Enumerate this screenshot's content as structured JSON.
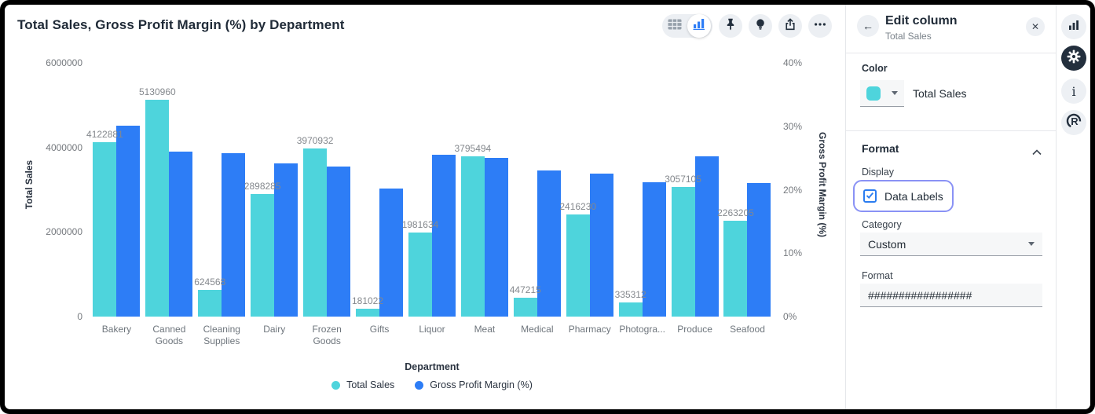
{
  "chart": {
    "title": "Total Sales, Gross Profit Margin (%) by Department",
    "toolbar_icons": [
      "table-view",
      "chart-view",
      "pin",
      "lightbulb",
      "share",
      "more"
    ]
  },
  "chart_data": {
    "type": "bar",
    "title": "Total Sales, Gross Profit Margin (%) by Department",
    "categories": [
      "Bakery",
      "Canned Goods",
      "Cleaning Supplies",
      "Dairy",
      "Frozen Goods",
      "Gifts",
      "Liquor",
      "Meat",
      "Medical",
      "Pharmacy",
      "Photogra...",
      "Produce",
      "Seafood"
    ],
    "series": [
      {
        "name": "Total Sales",
        "axis": "left",
        "color": "#4ED4DC",
        "data_labels": true,
        "values": [
          4122881,
          5130960,
          624568,
          2898285,
          3970932,
          181022,
          1981634,
          3795494,
          447215,
          2416230,
          335312,
          3057105,
          2263205
        ]
      },
      {
        "name": "Gross Profit Margin (%)",
        "axis": "right",
        "color": "#2D7DF6",
        "data_labels": false,
        "values": [
          30.1,
          26.0,
          25.7,
          24.2,
          23.6,
          20.2,
          25.5,
          25.0,
          23.0,
          22.5,
          21.2,
          25.3,
          21.1
        ]
      }
    ],
    "x_axis": {
      "label": "Department"
    },
    "y_left": {
      "label": "Total Sales",
      "max": 6000000,
      "ticks": [
        6000000,
        4000000,
        2000000,
        0
      ]
    },
    "y_right": {
      "label": "Gross Profit Margin (%)",
      "max": 40,
      "ticks": [
        40,
        30,
        20,
        10,
        0
      ],
      "suffix": "%"
    },
    "legend": {
      "position": "bottom",
      "items": [
        {
          "label": "Total Sales",
          "color": "#4ED4DC"
        },
        {
          "label": "Gross Profit Margin (%)",
          "color": "#2D7DF6"
        }
      ]
    },
    "grid": false
  },
  "panel": {
    "header": {
      "back_glyph": "←",
      "title": "Edit column",
      "subtitle": "Total Sales",
      "close_glyph": "✕"
    },
    "color_section": {
      "label": "Color",
      "swatch_color": "#4ED4DC",
      "value": "Total Sales"
    },
    "format_section": {
      "label": "Format",
      "display_label": "Display",
      "data_labels": {
        "label": "Data Labels",
        "checked": true
      },
      "category_label": "Category",
      "category_value": "Custom",
      "format_label": "Format",
      "format_value": "#################"
    }
  },
  "rail": {
    "icons": [
      "bar-chart",
      "settings-gear",
      "info",
      "r-language"
    ],
    "info_glyph": "i",
    "r_glyph": "R"
  }
}
